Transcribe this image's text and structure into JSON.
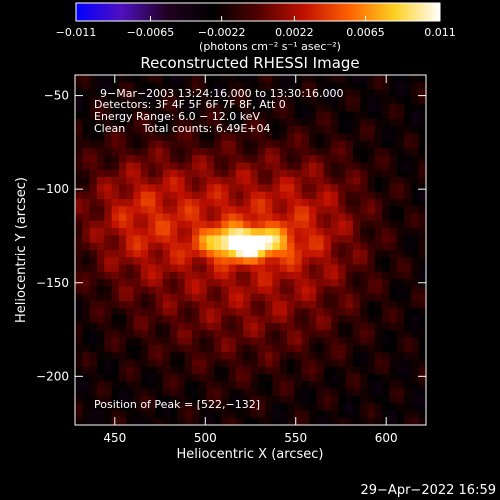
{
  "chart_data": {
    "type": "heatmap",
    "title": "Reconstructed RHESSI Image",
    "xlabel": "Heliocentric X (arcsec)",
    "ylabel": "Heliocentric Y (arcsec)",
    "xlim": [
      428,
      622
    ],
    "ylim": [
      -226,
      -39
    ],
    "x_ticks": [
      450,
      500,
      550,
      600
    ],
    "x_tick_labels": [
      "450",
      "500",
      "550",
      "600"
    ],
    "y_ticks": [
      -50,
      -100,
      -150,
      -200
    ],
    "y_tick_labels": [
      "−50",
      "−100",
      "−150",
      "−200"
    ],
    "colorbar": {
      "range": [
        -0.011,
        0.011
      ],
      "ticks": [
        -0.011,
        -0.0065,
        -0.0022,
        0.0022,
        0.0065,
        0.011
      ],
      "tick_labels": [
        "−0.011",
        "−0.0065",
        "−0.0022",
        "0.0022",
        "0.0065",
        "0.011"
      ],
      "unit_label": "(photons cm⁻² s⁻¹ asec⁻²)",
      "colormap": [
        "#0000ff",
        "#5010c0",
        "#200020",
        "#000000",
        "#500000",
        "#c01000",
        "#ff6000",
        "#ffd020",
        "#ffffff"
      ]
    },
    "info": {
      "time": "9−Mar−2003 13:24:16.000 to 13:30:16.000",
      "detectors": "Detectors: 3F 4F 5F 6F 7F 8F, Att 0",
      "energy": "Energy Range: 6.0 − 12.0 keV",
      "method": "Clean     Total counts: 6.49E+04"
    },
    "peak": {
      "label": "Position of Peak = [522,−132]",
      "x": 522,
      "y": -132,
      "value": 0.011
    },
    "background_value": -0.0025,
    "emission_sources": [
      {
        "x": 522,
        "y": -129,
        "sx": 20,
        "sy": 8,
        "value": 0.012
      },
      {
        "x": 500,
        "y": -110,
        "sx": 70,
        "sy": 35,
        "value": 0.0045
      },
      {
        "x": 520,
        "y": -160,
        "sx": 60,
        "sy": 40,
        "value": 0.0032
      },
      {
        "x": 560,
        "y": -120,
        "sx": 30,
        "sy": 40,
        "value": 0.0025
      },
      {
        "x": 460,
        "y": -120,
        "sx": 25,
        "sy": 35,
        "value": 0.0022
      }
    ],
    "grid": false,
    "legend": "none"
  },
  "footer": {
    "date": "29−Apr−2022 16:59"
  }
}
